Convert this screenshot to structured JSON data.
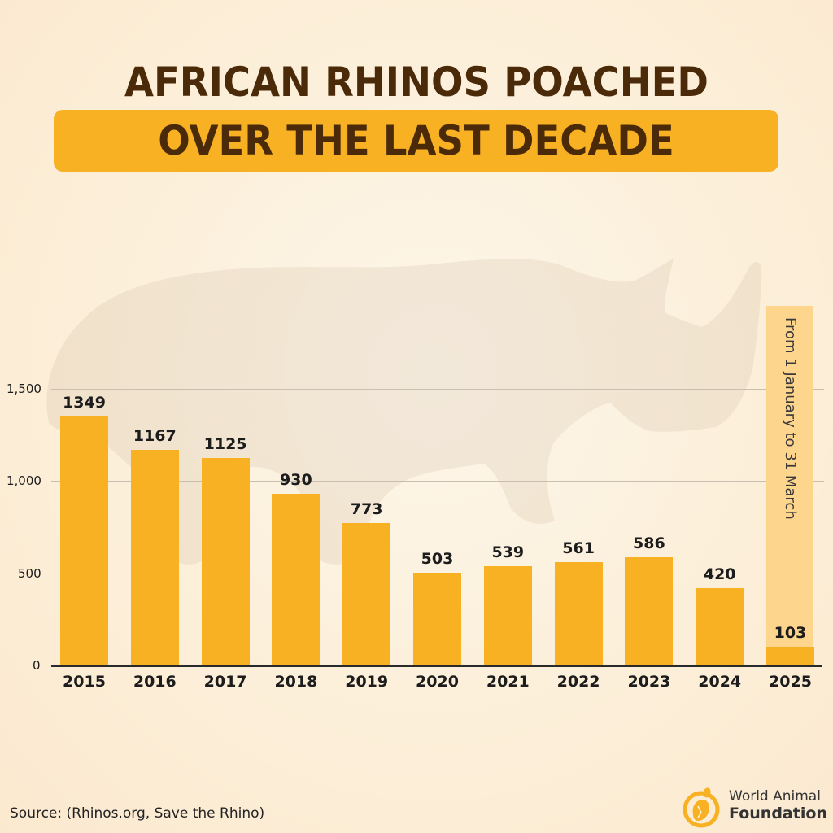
{
  "header": {
    "title_line1": "AFRICAN RHINOS POACHED",
    "title_line2": "OVER THE LAST DECADE"
  },
  "colors": {
    "bar": "#f8b122",
    "highlight": "#fdd58c",
    "title_text": "#4a2a08",
    "background": "#fcefd9"
  },
  "annotation": {
    "highlight_note": "From 1 January to 31 March",
    "applies_to": "2025"
  },
  "footer": {
    "source": "Source: (Rhinos.org, Save the Rhino)",
    "logo_line1": "World Animal",
    "logo_line2": "Foundation"
  },
  "icons": {
    "background": "rhino-silhouette-icon",
    "logo": "animal-foundation-logo-icon"
  },
  "chart_data": {
    "type": "bar",
    "title": "African Rhinos Poached Over the Last Decade",
    "xlabel": "",
    "ylabel": "",
    "categories": [
      "2015",
      "2016",
      "2017",
      "2018",
      "2019",
      "2020",
      "2021",
      "2022",
      "2023",
      "2024",
      "2025"
    ],
    "values": [
      1349,
      1167,
      1125,
      930,
      773,
      503,
      539,
      561,
      586,
      420,
      103
    ],
    "value_labels": [
      "1349",
      "1167",
      "1125",
      "930",
      "773",
      "503",
      "539",
      "561",
      "586",
      "420",
      "103"
    ],
    "ylim": [
      0,
      1500
    ],
    "yticks": [
      0,
      500,
      1000,
      1500
    ],
    "ytick_labels": [
      "0",
      "500",
      "1,000",
      "1,500"
    ],
    "grid": true,
    "legend": null,
    "annotations": [
      {
        "category": "2025",
        "text": "From 1 January to 31 March",
        "orientation": "vertical"
      }
    ],
    "source": "Rhinos.org, Save the Rhino"
  }
}
